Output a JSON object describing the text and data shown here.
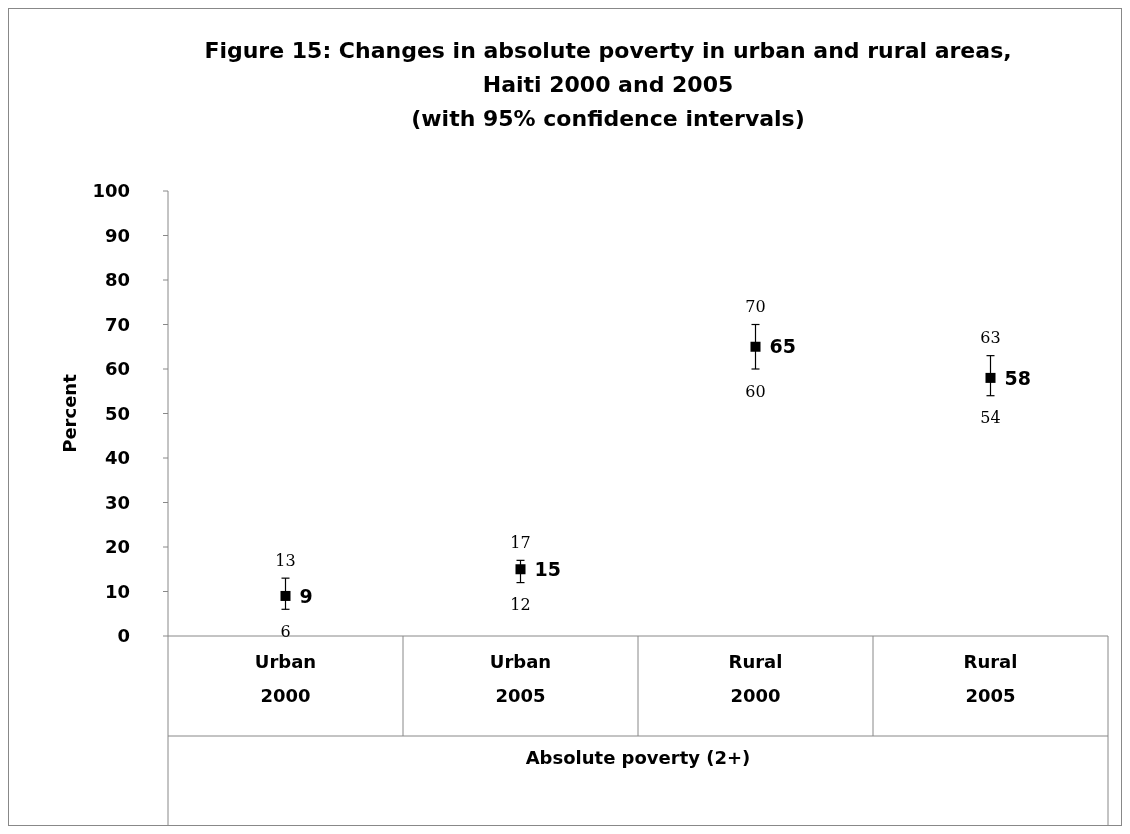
{
  "chart_data": {
    "type": "scatter",
    "title": "Figure 15: Changes in absolute poverty in urban and rural areas,\nHaiti 2000 and 2005\n(with 95% confidence intervals)",
    "ylabel": "Percent",
    "xlabel": "Absolute poverty (2+)",
    "categories": [
      "Urban\n\n2000",
      "Urban\n\n2005",
      "Rural\n\n2000",
      "Rural\n\n2005"
    ],
    "series": [
      {
        "color": "#000000",
        "values": [
          9,
          15,
          65,
          58
        ],
        "errors": [
          [
            6,
            13
          ],
          [
            12,
            17
          ],
          [
            60,
            70
          ],
          [
            54,
            63
          ]
        ]
      }
    ],
    "annotations": [
      {
        "text": "13",
        "x": "Urban\n\n2000",
        "y": 13
      },
      {
        "text": "6",
        "x": "Urban\n\n2000",
        "y": 6
      },
      {
        "text": "17",
        "x": "Urban\n\n2005",
        "y": 17
      },
      {
        "text": "12",
        "x": "Urban\n\n2005",
        "y": 12
      },
      {
        "text": "70",
        "x": "Rural\n\n2000",
        "y": 70
      },
      {
        "text": "60",
        "x": "Rural\n\n2000",
        "y": 60
      },
      {
        "text": "63",
        "x": "Rural\n\n2005",
        "y": 63
      },
      {
        "text": "54",
        "x": "Rural\n\n2005",
        "y": 54
      }
    ],
    "ylim": [
      0,
      100
    ],
    "yticks": [
      0,
      10,
      20,
      30,
      40,
      50,
      60,
      70,
      80,
      90,
      100
    ],
    "marker": "square",
    "data_labels": true
  }
}
